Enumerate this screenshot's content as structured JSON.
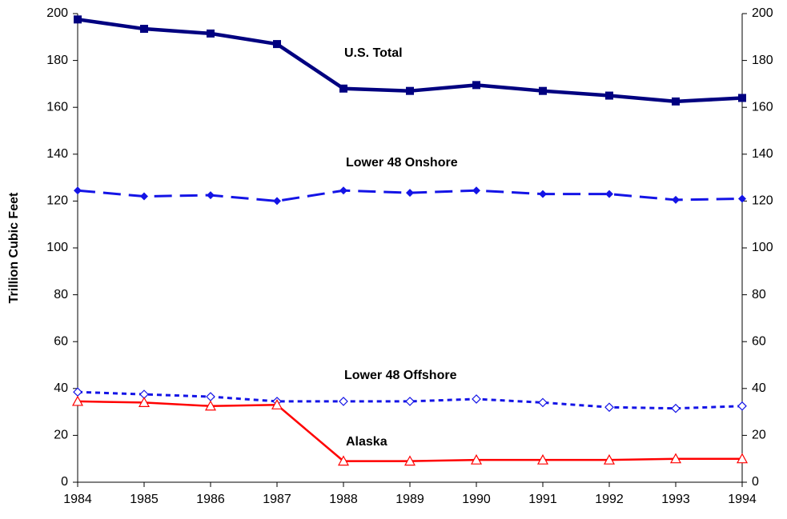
{
  "chart_data": {
    "type": "line",
    "y_label": "Trillion Cubic Feet",
    "x": [
      1984,
      1985,
      1986,
      1987,
      1988,
      1989,
      1990,
      1991,
      1992,
      1993,
      1994
    ],
    "xlim": [
      1984,
      1994
    ],
    "xticks": [
      1984,
      1985,
      1986,
      1987,
      1988,
      1989,
      1990,
      1991,
      1992,
      1993,
      1994
    ],
    "ylim": [
      0,
      200
    ],
    "yticks": [
      0,
      20,
      40,
      60,
      80,
      100,
      120,
      140,
      160,
      180,
      200
    ],
    "y2lim": [
      0,
      200
    ],
    "y2ticks": [
      0,
      20,
      40,
      60,
      80,
      100,
      120,
      140,
      160,
      180,
      200
    ],
    "grid": false,
    "series": [
      {
        "name": "U.S. Total",
        "color": "#000080",
        "values": [
          197.5,
          193.5,
          191.5,
          187,
          168,
          167,
          169.5,
          167,
          165,
          162.5,
          164
        ]
      },
      {
        "name": "Lower 48 Onshore",
        "color": "#1414e6",
        "values": [
          124.5,
          122,
          122.5,
          120,
          124.5,
          123.5,
          124.5,
          123,
          123,
          120.5,
          121
        ]
      },
      {
        "name": "Lower 48 Offshore",
        "color": "#1414e6",
        "values": [
          38.5,
          37.5,
          36.5,
          34.5,
          34.5,
          34.5,
          35.5,
          34,
          32,
          31.5,
          32.5
        ]
      },
      {
        "name": "Alaska",
        "color": "#ff0000",
        "values": [
          34.5,
          34,
          32.5,
          33,
          9,
          9,
          9.5,
          9.5,
          9.5,
          10,
          10
        ]
      }
    ]
  }
}
